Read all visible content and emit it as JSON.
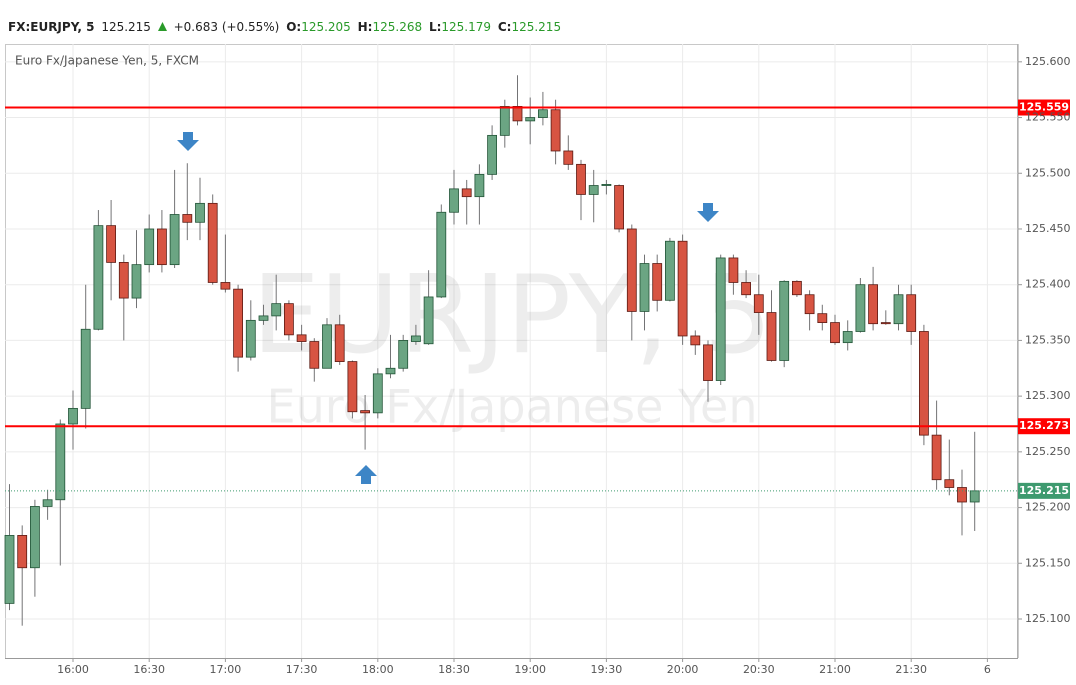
{
  "header": {
    "symbol": "FX:EURJPY, 5",
    "last": "125.215",
    "change": "+0.683 (+0.55%)",
    "open_label": "O:",
    "open": "125.205",
    "high_label": "H:",
    "high": "125.268",
    "low_label": "L:",
    "low": "125.179",
    "close_label": "C:",
    "close": "125.215"
  },
  "chart_data": {
    "type": "candlestick",
    "title": "Euro Fx/Japanese Yen, 5, FXCM",
    "watermark": "EURJPY, 5",
    "watermark_subtitle": "Euro Fx/Japanese Yen",
    "categories": [
      null,
      null,
      null,
      null,
      null,
      "16:00",
      null,
      null,
      null,
      null,
      null,
      "16:30",
      null,
      null,
      null,
      null,
      null,
      "17:00",
      null,
      null,
      null,
      null,
      null,
      "17:30",
      null,
      null,
      null,
      null,
      null,
      "18:00",
      null,
      null,
      null,
      null,
      null,
      "18:30",
      null,
      null,
      null,
      null,
      null,
      "19:00",
      null,
      null,
      null,
      null,
      null,
      "19:30",
      null,
      null,
      null,
      null,
      null,
      "20:00",
      null,
      null,
      null,
      null,
      null,
      "20:30",
      null,
      null,
      null,
      null,
      null,
      "21:00",
      null,
      null,
      null,
      null,
      null,
      "21:30",
      null,
      null,
      null,
      null,
      null,
      "6"
    ],
    "open": [
      125.114,
      125.175,
      125.146,
      125.201,
      125.207,
      125.275,
      125.289,
      125.36,
      125.453,
      125.42,
      125.388,
      125.418,
      125.45,
      125.418,
      125.463,
      125.456,
      125.473,
      125.402,
      125.396,
      125.335,
      125.368,
      125.372,
      125.383,
      125.355,
      125.349,
      125.325,
      125.364,
      125.331,
      125.287,
      125.285,
      125.32,
      125.325,
      125.349,
      125.347,
      125.389,
      125.465,
      125.486,
      125.479,
      125.499,
      125.534,
      125.56,
      125.547,
      125.55,
      125.557,
      125.52,
      125.508,
      125.481,
      125.489,
      125.489,
      125.45,
      125.376,
      125.419,
      125.386,
      125.439,
      125.354,
      125.346,
      125.314,
      125.424,
      125.402,
      125.391,
      125.375,
      125.332,
      125.403,
      125.391,
      125.374,
      125.366,
      125.348,
      125.358,
      125.4,
      125.366,
      125.365,
      125.391,
      125.358,
      125.265,
      125.225,
      125.218,
      125.205,
      null
    ],
    "high": [
      125.221,
      125.184,
      125.207,
      125.216,
      125.279,
      125.305,
      125.4,
      125.467,
      125.476,
      125.427,
      125.449,
      125.463,
      125.467,
      125.503,
      125.509,
      125.496,
      125.481,
      125.445,
      125.4,
      125.386,
      125.382,
      125.409,
      125.386,
      125.364,
      125.352,
      125.37,
      125.373,
      125.332,
      125.301,
      125.325,
      125.355,
      125.355,
      125.364,
      125.413,
      125.472,
      125.503,
      125.494,
      125.508,
      125.543,
      125.566,
      125.588,
      125.568,
      125.573,
      125.566,
      125.534,
      125.512,
      125.503,
      125.494,
      125.49,
      125.454,
      125.427,
      125.427,
      125.442,
      125.445,
      125.359,
      125.35,
      125.427,
      125.427,
      125.413,
      125.409,
      125.395,
      125.404,
      125.404,
      125.395,
      125.382,
      125.373,
      125.368,
      125.406,
      125.416,
      125.377,
      125.4,
      125.4,
      125.364,
      125.296,
      125.261,
      125.234,
      125.268,
      null
    ],
    "low": [
      125.108,
      125.094,
      125.12,
      125.189,
      125.148,
      125.252,
      125.271,
      125.359,
      125.386,
      125.35,
      125.379,
      125.411,
      125.411,
      125.415,
      125.44,
      125.44,
      125.4,
      125.393,
      125.322,
      125.332,
      125.364,
      125.359,
      125.35,
      125.341,
      125.313,
      125.325,
      125.328,
      125.28,
      125.252,
      125.28,
      125.316,
      125.322,
      125.346,
      125.346,
      125.388,
      125.454,
      125.454,
      125.454,
      125.494,
      125.523,
      125.543,
      125.526,
      125.543,
      125.508,
      125.503,
      125.458,
      125.456,
      125.481,
      125.447,
      125.35,
      125.359,
      125.376,
      125.385,
      125.346,
      125.337,
      125.295,
      125.31,
      125.391,
      125.388,
      125.355,
      125.331,
      125.326,
      125.389,
      125.359,
      125.359,
      125.346,
      125.341,
      125.357,
      125.359,
      125.364,
      125.359,
      125.346,
      125.256,
      125.216,
      125.211,
      125.175,
      125.179,
      null
    ],
    "close": [
      125.175,
      125.146,
      125.201,
      125.207,
      125.275,
      125.289,
      125.36,
      125.453,
      125.42,
      125.388,
      125.418,
      125.45,
      125.418,
      125.463,
      125.456,
      125.473,
      125.402,
      125.396,
      125.335,
      125.368,
      125.372,
      125.383,
      125.355,
      125.349,
      125.325,
      125.364,
      125.331,
      125.286,
      125.285,
      125.32,
      125.325,
      125.35,
      125.354,
      125.389,
      125.465,
      125.486,
      125.479,
      125.499,
      125.534,
      125.56,
      125.547,
      125.55,
      125.557,
      125.52,
      125.508,
      125.481,
      125.489,
      125.49,
      125.45,
      125.376,
      125.419,
      125.386,
      125.439,
      125.354,
      125.346,
      125.314,
      125.424,
      125.402,
      125.391,
      125.375,
      125.332,
      125.403,
      125.391,
      125.374,
      125.366,
      125.348,
      125.358,
      125.4,
      125.365,
      125.365,
      125.391,
      125.358,
      125.265,
      125.225,
      125.218,
      125.205,
      125.215,
      null
    ],
    "up_color": "#6ba583",
    "up_border": "#225437",
    "down_color": "#d75442",
    "down_border": "#5b1a13",
    "wick_color": "#737375",
    "ylim": [
      125.065,
      125.616
    ],
    "yticks": [
      {
        "value": 125.1,
        "label": "125.100"
      },
      {
        "value": 125.15,
        "label": "125.150"
      },
      {
        "value": 125.2,
        "label": "125.200"
      },
      {
        "value": 125.25,
        "label": "125.250"
      },
      {
        "value": 125.3,
        "label": "125.300"
      },
      {
        "value": 125.35,
        "label": "125.350"
      },
      {
        "value": 125.4,
        "label": "125.400"
      },
      {
        "value": 125.45,
        "label": "125.450"
      },
      {
        "value": 125.5,
        "label": "125.500"
      },
      {
        "value": 125.55,
        "label": "125.550"
      },
      {
        "value": 125.6,
        "label": "125.600"
      }
    ],
    "grid": true,
    "price_lines": [
      {
        "value": 125.559,
        "label": "125.559",
        "color": "#ff0000"
      },
      {
        "value": 125.273,
        "label": "125.273",
        "color": "#ff0000"
      }
    ],
    "last_price": {
      "value": 125.215,
      "label": "125.215",
      "color": "#3e9a6f"
    }
  }
}
